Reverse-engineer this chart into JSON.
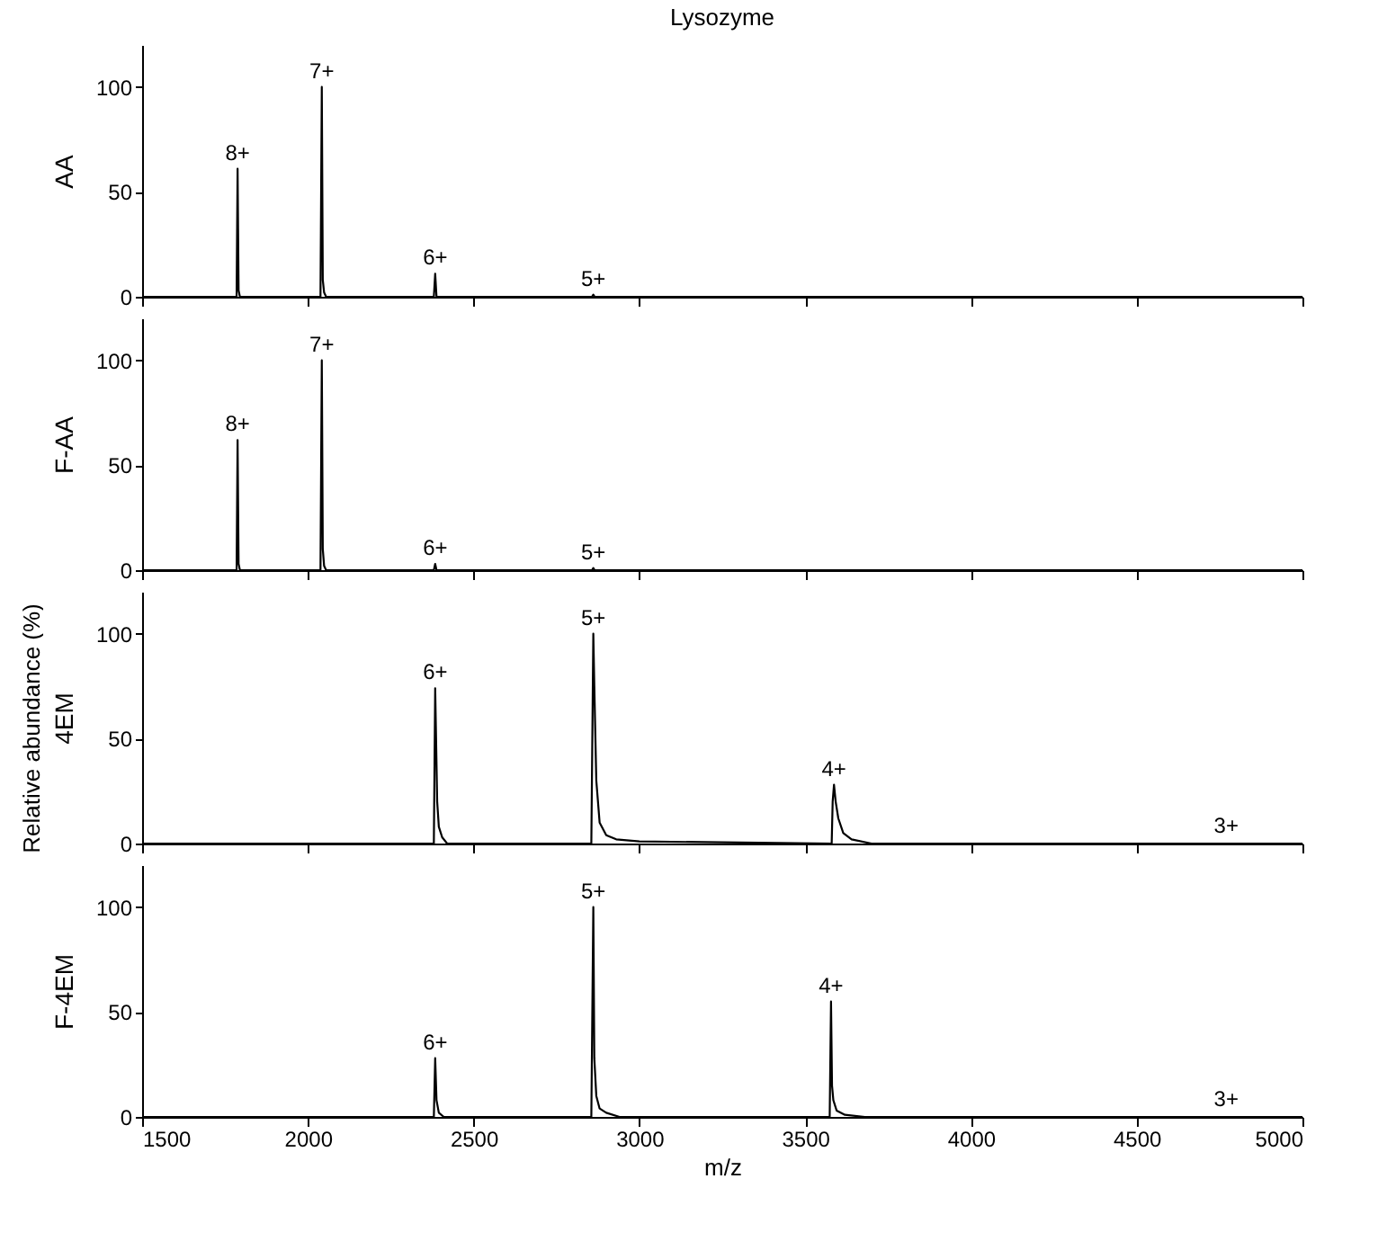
{
  "chart_data": [
    {
      "type": "line",
      "title": "Lysozyme",
      "ylabel": "AA",
      "annotations": [
        "Relative abundance (%)",
        {
          "text": "8+",
          "x": 1788,
          "y": 61
        },
        {
          "text": "7+",
          "x": 2042,
          "y": 100
        },
        {
          "text": "6+",
          "x": 2384,
          "y": 11
        },
        {
          "text": "5+",
          "x": 2861,
          "y": 1
        }
      ],
      "xlim": [
        1500,
        5000
      ],
      "xticks": [
        1500,
        2000,
        2500,
        3000,
        3500,
        4000,
        4500,
        5000
      ],
      "ylim": [
        0,
        120
      ],
      "yticks": [
        0,
        50,
        100
      ],
      "tick_labels": "y",
      "grid": false,
      "series": [
        {
          "color": "#000000",
          "x": [
            1500,
            1785,
            1788,
            1791,
            1795,
            2038,
            2042,
            2045,
            2049,
            2055,
            2380,
            2384,
            2388,
            2857,
            2861,
            2865,
            5000
          ],
          "values": [
            0,
            0,
            61,
            3,
            0,
            0,
            100,
            8,
            2,
            0,
            0,
            11,
            0,
            0,
            1,
            0,
            0
          ]
        }
      ]
    },
    {
      "type": "line",
      "ylabel": "F-AA",
      "annotations": [
        {
          "text": "8+",
          "x": 1788,
          "y": 62
        },
        {
          "text": "7+",
          "x": 2042,
          "y": 100
        },
        {
          "text": "6+",
          "x": 2384,
          "y": 3
        },
        {
          "text": "5+",
          "x": 2861,
          "y": 1
        }
      ],
      "xlim": [
        1500,
        5000
      ],
      "xticks": [
        1500,
        2000,
        2500,
        3000,
        3500,
        4000,
        4500,
        5000
      ],
      "ylim": [
        0,
        120
      ],
      "yticks": [
        0,
        50,
        100
      ],
      "tick_labels": "y",
      "grid": false,
      "series": [
        {
          "color": "#000000",
          "x": [
            1500,
            1785,
            1788,
            1791,
            1795,
            2038,
            2042,
            2045,
            2049,
            2055,
            2380,
            2384,
            2388,
            2857,
            2861,
            2865,
            5000
          ],
          "values": [
            0,
            0,
            62,
            3,
            0,
            0,
            100,
            10,
            2,
            0,
            0,
            3,
            0,
            0,
            1,
            0,
            0
          ]
        }
      ]
    },
    {
      "type": "line",
      "ylabel": "4EM",
      "annotations": [
        {
          "text": "6+",
          "x": 2384,
          "y": 74
        },
        {
          "text": "5+",
          "x": 2861,
          "y": 100
        },
        {
          "text": "4+",
          "x": 3587,
          "y": 28
        },
        {
          "text": "3+",
          "x": 4770,
          "y": 1
        }
      ],
      "xlim": [
        1500,
        5000
      ],
      "xticks": [
        1500,
        2000,
        2500,
        3000,
        3500,
        4000,
        4500,
        5000
      ],
      "ylim": [
        0,
        120
      ],
      "yticks": [
        0,
        50,
        100
      ],
      "tick_labels": "y",
      "grid": false,
      "series": [
        {
          "color": "#000000",
          "x": [
            1500,
            2380,
            2384,
            2386,
            2390,
            2395,
            2405,
            2420,
            2855,
            2861,
            2864,
            2870,
            2880,
            2900,
            2930,
            3000,
            3580,
            3583,
            3587,
            3592,
            3600,
            3615,
            3640,
            3700,
            5000
          ],
          "values": [
            0,
            0,
            74,
            56,
            20,
            8,
            3,
            0,
            0,
            100,
            75,
            30,
            10,
            4,
            2,
            1,
            0,
            20,
            28,
            20,
            12,
            5,
            2,
            0,
            0
          ]
        }
      ]
    },
    {
      "type": "line",
      "ylabel": "F-4EM",
      "xlabel": "m/z",
      "annotations": [
        {
          "text": "6+",
          "x": 2384,
          "y": 28
        },
        {
          "text": "5+",
          "x": 2861,
          "y": 100
        },
        {
          "text": "4+",
          "x": 3578,
          "y": 55
        },
        {
          "text": "3+",
          "x": 4770,
          "y": 1
        }
      ],
      "xlim": [
        1500,
        5000
      ],
      "xticks": [
        1500,
        2000,
        2500,
        3000,
        3500,
        4000,
        4500,
        5000
      ],
      "ylim": [
        0,
        120
      ],
      "yticks": [
        0,
        50,
        100
      ],
      "grid": false,
      "series": [
        {
          "color": "#000000",
          "x": [
            1500,
            2380,
            2384,
            2388,
            2395,
            2410,
            2855,
            2861,
            2864,
            2870,
            2880,
            2900,
            2940,
            3574,
            3578,
            3581,
            3585,
            3595,
            3620,
            3680,
            5000
          ],
          "values": [
            0,
            0,
            28,
            8,
            2,
            0,
            0,
            100,
            28,
            10,
            4,
            2,
            0,
            0,
            55,
            15,
            8,
            3,
            1,
            0,
            0
          ]
        }
      ]
    }
  ]
}
